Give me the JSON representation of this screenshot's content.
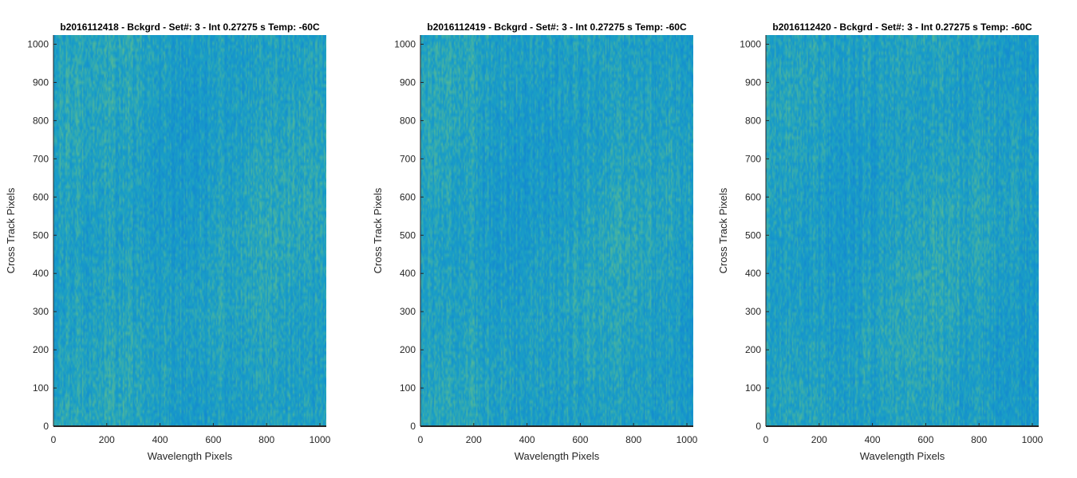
{
  "colors": {
    "base": "#1a9fc6",
    "low": "#0f7fd6",
    "high": "#6cc383",
    "axis": "#262626"
  },
  "chart_data": [
    {
      "type": "heatmap",
      "title": "b2016112418 - Bckgrd - Set#: 3 - Int 0.27275 s Temp: -60C",
      "xlabel": "Wavelength Pixels",
      "ylabel": "Cross Track Pixels",
      "xlim": [
        0,
        1024
      ],
      "ylim": [
        0,
        1024
      ],
      "xticks": [
        0,
        200,
        400,
        600,
        800,
        1000
      ],
      "yticks": [
        0,
        100,
        200,
        300,
        400,
        500,
        600,
        700,
        800,
        900,
        1000
      ],
      "xtick_labels": [
        "0",
        "200",
        "400",
        "600",
        "800",
        "1000"
      ],
      "ytick_labels": [
        "0",
        "100",
        "200",
        "300",
        "400",
        "500",
        "600",
        "700",
        "800",
        "900",
        "1000"
      ],
      "colormap": "parula",
      "note": "background noise frame, fine vertical streak texture"
    },
    {
      "type": "heatmap",
      "title": "b2016112419 - Bckgrd - Set#: 3 - Int 0.27275 s Temp: -60C",
      "xlabel": "Wavelength Pixels",
      "ylabel": "Cross Track Pixels",
      "xlim": [
        0,
        1024
      ],
      "ylim": [
        0,
        1024
      ],
      "xticks": [
        0,
        200,
        400,
        600,
        800,
        1000
      ],
      "yticks": [
        0,
        100,
        200,
        300,
        400,
        500,
        600,
        700,
        800,
        900,
        1000
      ],
      "xtick_labels": [
        "0",
        "200",
        "400",
        "600",
        "800",
        "1000"
      ],
      "ytick_labels": [
        "0",
        "100",
        "200",
        "300",
        "400",
        "500",
        "600",
        "700",
        "800",
        "900",
        "1000"
      ],
      "colormap": "parula",
      "note": "background noise frame, fine vertical streak texture"
    },
    {
      "type": "heatmap",
      "title": "b2016112420 - Bckgrd - Set#: 3 - Int 0.27275 s Temp: -60C",
      "xlabel": "Wavelength Pixels",
      "ylabel": "Cross Track Pixels",
      "xlim": [
        0,
        1024
      ],
      "ylim": [
        0,
        1024
      ],
      "xticks": [
        0,
        200,
        400,
        600,
        800,
        1000
      ],
      "yticks": [
        0,
        100,
        200,
        300,
        400,
        500,
        600,
        700,
        800,
        900,
        1000
      ],
      "xtick_labels": [
        "0",
        "200",
        "400",
        "600",
        "800",
        "1000"
      ],
      "ytick_labels": [
        "0",
        "100",
        "200",
        "300",
        "400",
        "500",
        "600",
        "700",
        "800",
        "900",
        "1000"
      ],
      "colormap": "parula",
      "note": "background noise frame, fine vertical streak texture"
    }
  ]
}
